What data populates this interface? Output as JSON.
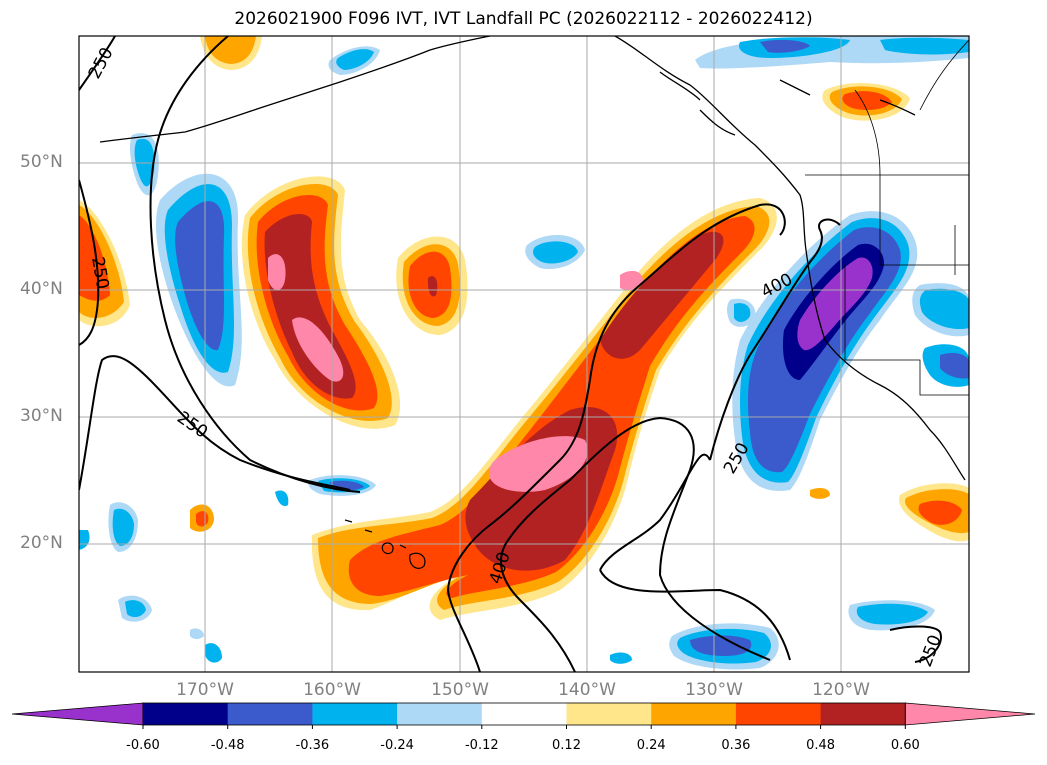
{
  "title": "2026021900 F096 IVT, IVT Landfall PC (2026022112 - 2026022412)",
  "latitude_labels": [
    "50°N",
    "40°N",
    "30°N",
    "20°N"
  ],
  "longitude_labels": [
    "170°W",
    "160°W",
    "150°W",
    "140°W",
    "130°W",
    "120°W"
  ],
  "contour_labels": [
    "250",
    "250",
    "250",
    "400",
    "400",
    "250",
    "250"
  ],
  "colorbar": {
    "tick_labels": [
      "-0.60",
      "-0.48",
      "-0.36",
      "-0.24",
      "-0.12",
      "0.12",
      "0.24",
      "0.36",
      "0.48",
      "0.60"
    ],
    "colors": [
      "#9932CC",
      "#00008B",
      "#3B5BCC",
      "#00B2EE",
      "#ADD8F6",
      "#FFFFFF",
      "#FFE68A",
      "#FFA500",
      "#FF4500",
      "#B22222",
      "#FF88AA"
    ]
  },
  "colors": {
    "coastline": "#000000",
    "gridline": "#AAAAAA",
    "contour": "#000000",
    "axis_label": "#808080"
  }
}
